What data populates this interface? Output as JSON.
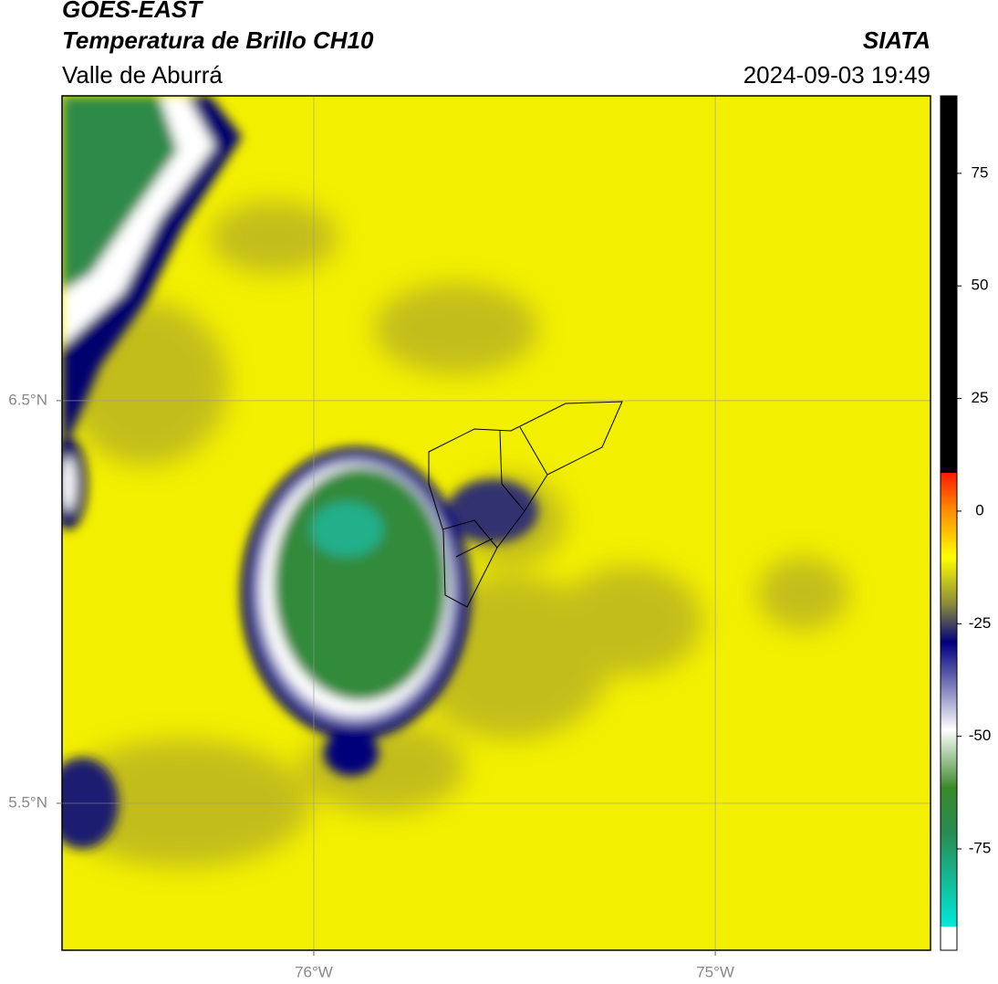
{
  "header": {
    "satellite": "GOES-EAST",
    "product": "Temperatura de Brillo CH10",
    "region": "Valle de Aburrá",
    "source": "SIATA",
    "timestamp": "2024-09-03 19:49"
  },
  "map": {
    "lonlim": [
      -76.627,
      -74.464
    ],
    "latlim": [
      5.135,
      7.257
    ],
    "lonticks": [
      {
        "value": -76,
        "label": "76°W"
      },
      {
        "value": -75,
        "label": "75°W"
      }
    ],
    "latticks": [
      {
        "value": 6.5,
        "label": "6.5°N"
      },
      {
        "value": 5.5,
        "label": "5.5°N"
      }
    ],
    "grid": true
  },
  "colorbar": {
    "lim": [
      -97.5,
      92.2
    ],
    "ticks": [
      75,
      50,
      25,
      0,
      -25,
      -50,
      -75
    ]
  }
}
